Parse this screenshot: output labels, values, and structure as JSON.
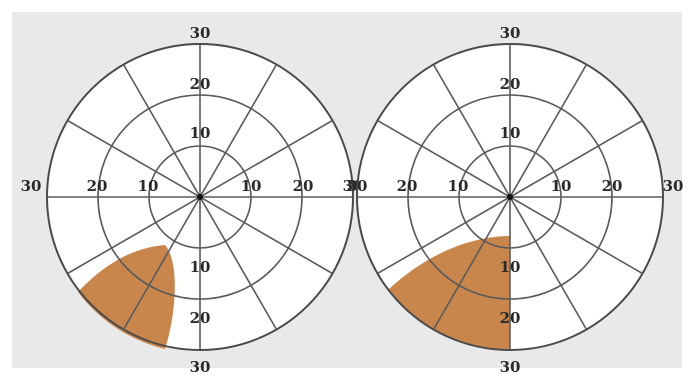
{
  "figure": {
    "background_color": "#e9e9e9",
    "defect_color": "#c8864c",
    "grid_color": "#5a5a5a",
    "ring_values_degrees": [
      10,
      20,
      30
    ],
    "meridian_count": 12
  },
  "fields": [
    {
      "id": "left-field",
      "defect": "partial quadrantanopia",
      "labels": {
        "top_outer": "30",
        "top_mid": "20",
        "top_inner": "10",
        "left_outer": "30",
        "left_mid": "20",
        "left_inner": "10",
        "right_inner": "10",
        "right_mid": "20",
        "right_outer": "30",
        "bottom_inner": "10",
        "bottom_mid": "20",
        "bottom_outer": "30"
      }
    },
    {
      "id": "right-field",
      "defect": "complete inferior quadrant",
      "labels": {
        "top_outer": "30",
        "top_mid": "20",
        "top_inner": "10",
        "left_outer": "30",
        "left_mid": "20",
        "left_inner": "10",
        "right_inner": "10",
        "right_mid": "20",
        "right_outer": "30",
        "bottom_inner": "10",
        "bottom_mid": "20",
        "bottom_outer": "30"
      }
    }
  ]
}
